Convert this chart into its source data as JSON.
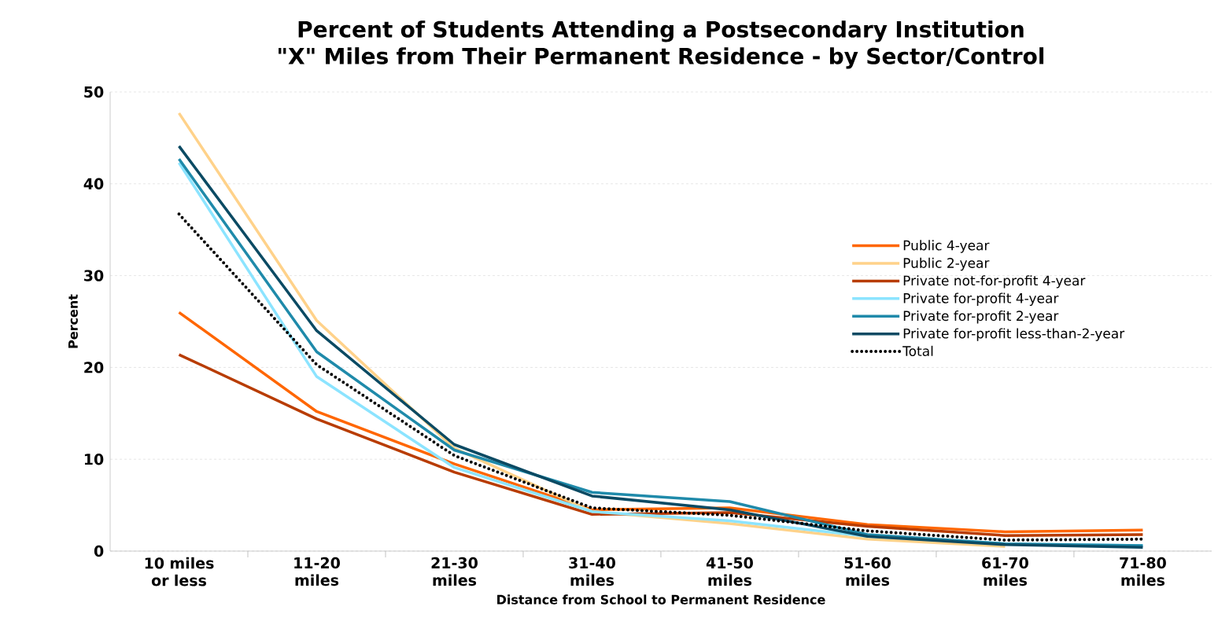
{
  "chart_data": {
    "type": "line",
    "title": "Percent of Students Attending a Postsecondary Institution \"X\" Miles from Their Permanent Residence - by Sector/Control",
    "xlabel": "Distance from School to Permanent Residence",
    "ylabel": "Percent",
    "categories": [
      "10 miles or less",
      "11-20 miles",
      "21-30 miles",
      "31-40 miles",
      "41-50 miles",
      "51-60 miles",
      "61-70 miles",
      "71-80 miles"
    ],
    "series": [
      {
        "name": "Public 4-year",
        "color": "#ff6600",
        "values": [
          26.0,
          15.2,
          9.5,
          4.5,
          4.7,
          2.9,
          2.1,
          2.3
        ]
      },
      {
        "name": "Public 2-year",
        "color": "#ffd28a",
        "values": [
          47.7,
          25.1,
          11.2,
          4.3,
          3.0,
          1.3,
          0.5,
          null
        ]
      },
      {
        "name": "Private not-for-profit 4-year",
        "color": "#b83c00",
        "values": [
          21.4,
          14.4,
          8.6,
          4.0,
          4.2,
          2.7,
          1.7,
          1.8
        ]
      },
      {
        "name": "Private for-profit 4-year",
        "color": "#8ce4ff",
        "values": [
          42.3,
          19.0,
          9.1,
          4.3,
          3.3,
          1.6,
          0.8,
          0.6
        ]
      },
      {
        "name": "Private for-profit 2-year",
        "color": "#1f8aaa",
        "values": [
          42.7,
          21.7,
          11.0,
          6.4,
          5.4,
          1.8,
          0.8,
          0.6
        ]
      },
      {
        "name": "Private for-profit less-than-2-year",
        "color": "#0b4a63",
        "values": [
          44.1,
          24.0,
          11.6,
          6.0,
          4.5,
          1.6,
          0.7,
          0.4
        ]
      },
      {
        "name": "Total",
        "color": "#000000",
        "line_style": "dotted",
        "values": [
          36.7,
          20.3,
          10.4,
          4.7,
          3.9,
          2.2,
          1.2,
          1.3
        ]
      }
    ],
    "ylim": [
      0,
      50
    ],
    "yticks": [
      0,
      10,
      20,
      30,
      40,
      50
    ],
    "grid": "y",
    "legend": "right",
    "line_style": "solid"
  }
}
